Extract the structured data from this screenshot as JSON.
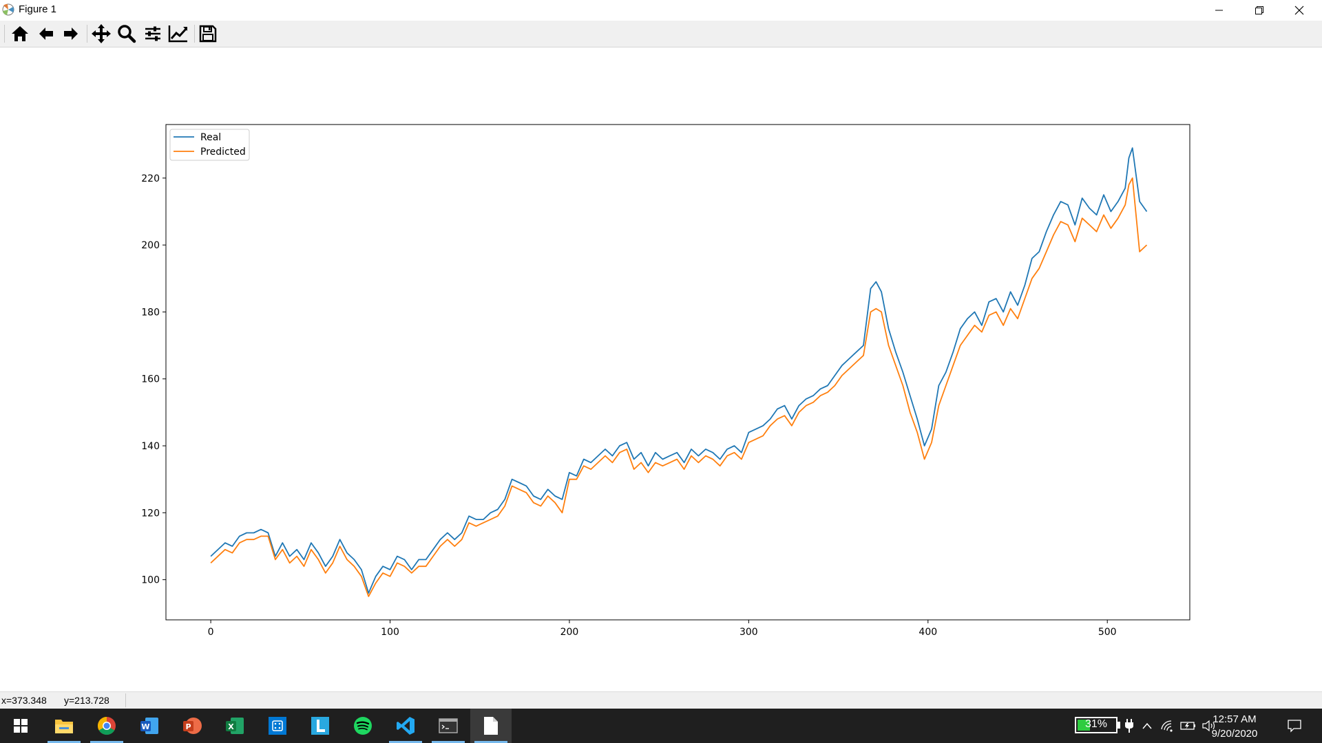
{
  "window": {
    "title": "Figure 1",
    "minimize_icon": "minimize-icon",
    "restore_icon": "restore-icon",
    "close_icon": "close-icon"
  },
  "toolbar": {
    "items": [
      "home-icon",
      "back-arrow-icon",
      "forward-arrow-icon",
      "pan-icon",
      "zoom-icon",
      "subplots-icon",
      "edit-axis-icon",
      "save-icon"
    ]
  },
  "chart_data": {
    "type": "line",
    "title": "",
    "xlabel": "",
    "ylabel": "",
    "xlim": [
      -25,
      546
    ],
    "ylim": [
      88,
      236
    ],
    "xticks": [
      0,
      100,
      200,
      300,
      400,
      500
    ],
    "yticks": [
      100,
      120,
      140,
      160,
      180,
      200,
      220
    ],
    "legend_position": "upper-left",
    "grid": false,
    "series": [
      {
        "name": "Real",
        "color": "#1f77b4",
        "x": [
          0,
          8,
          12,
          16,
          20,
          24,
          28,
          32,
          36,
          40,
          44,
          48,
          52,
          56,
          60,
          64,
          68,
          72,
          76,
          80,
          84,
          88,
          92,
          96,
          100,
          104,
          108,
          112,
          116,
          120,
          124,
          128,
          132,
          136,
          140,
          144,
          148,
          152,
          156,
          160,
          164,
          168,
          172,
          176,
          180,
          184,
          188,
          192,
          196,
          200,
          204,
          208,
          212,
          216,
          220,
          224,
          228,
          232,
          236,
          240,
          244,
          248,
          252,
          256,
          260,
          264,
          268,
          272,
          276,
          280,
          284,
          288,
          292,
          296,
          300,
          304,
          308,
          312,
          316,
          320,
          324,
          328,
          332,
          336,
          340,
          344,
          348,
          352,
          356,
          360,
          364,
          368,
          371,
          374,
          378,
          382,
          386,
          390,
          394,
          398,
          402,
          406,
          410,
          414,
          418,
          422,
          426,
          430,
          434,
          438,
          442,
          446,
          450,
          454,
          458,
          462,
          466,
          470,
          474,
          478,
          482,
          486,
          490,
          494,
          498,
          502,
          506,
          510,
          512,
          514,
          518,
          522
        ],
        "y": [
          107,
          111,
          110,
          113,
          114,
          114,
          115,
          114,
          107,
          111,
          107,
          109,
          106,
          111,
          108,
          104,
          107,
          112,
          108,
          106,
          103,
          96,
          101,
          104,
          103,
          107,
          106,
          103,
          106,
          106,
          109,
          112,
          114,
          112,
          114,
          119,
          118,
          118,
          120,
          121,
          124,
          130,
          129,
          128,
          125,
          124,
          127,
          125,
          124,
          132,
          131,
          136,
          135,
          137,
          139,
          137,
          140,
          141,
          136,
          138,
          134,
          138,
          136,
          137,
          138,
          135,
          139,
          137,
          139,
          138,
          136,
          139,
          140,
          138,
          144,
          145,
          146,
          148,
          151,
          152,
          148,
          152,
          154,
          155,
          157,
          158,
          161,
          164,
          166,
          168,
          170,
          187,
          189,
          186,
          175,
          168,
          162,
          155,
          148,
          140,
          145,
          158,
          162,
          168,
          175,
          178,
          180,
          176,
          183,
          184,
          180,
          186,
          182,
          188,
          196,
          198,
          204,
          209,
          213,
          212,
          206,
          214,
          211,
          209,
          215,
          210,
          213,
          217,
          226,
          229,
          213,
          210
        ]
      },
      {
        "name": "Predicted",
        "color": "#ff7f0e",
        "x": [
          0,
          8,
          12,
          16,
          20,
          24,
          28,
          32,
          36,
          40,
          44,
          48,
          52,
          56,
          60,
          64,
          68,
          72,
          76,
          80,
          84,
          88,
          92,
          96,
          100,
          104,
          108,
          112,
          116,
          120,
          124,
          128,
          132,
          136,
          140,
          144,
          148,
          152,
          156,
          160,
          164,
          168,
          172,
          176,
          180,
          184,
          188,
          192,
          196,
          200,
          204,
          208,
          212,
          216,
          220,
          224,
          228,
          232,
          236,
          240,
          244,
          248,
          252,
          256,
          260,
          264,
          268,
          272,
          276,
          280,
          284,
          288,
          292,
          296,
          300,
          304,
          308,
          312,
          316,
          320,
          324,
          328,
          332,
          336,
          340,
          344,
          348,
          352,
          356,
          360,
          364,
          368,
          371,
          374,
          378,
          382,
          386,
          390,
          394,
          398,
          402,
          406,
          410,
          414,
          418,
          422,
          426,
          430,
          434,
          438,
          442,
          446,
          450,
          454,
          458,
          462,
          466,
          470,
          474,
          478,
          482,
          486,
          490,
          494,
          498,
          502,
          506,
          510,
          512,
          514,
          518,
          522
        ],
        "y": [
          105,
          109,
          108,
          111,
          112,
          112,
          113,
          113,
          106,
          109,
          105,
          107,
          104,
          109,
          106,
          102,
          105,
          110,
          106,
          104,
          101,
          95,
          99,
          102,
          101,
          105,
          104,
          102,
          104,
          104,
          107,
          110,
          112,
          110,
          112,
          117,
          116,
          117,
          118,
          119,
          122,
          128,
          127,
          126,
          123,
          122,
          125,
          123,
          120,
          130,
          130,
          134,
          133,
          135,
          137,
          135,
          138,
          139,
          133,
          135,
          132,
          135,
          134,
          135,
          136,
          133,
          137,
          135,
          137,
          136,
          134,
          137,
          138,
          136,
          141,
          142,
          143,
          146,
          148,
          149,
          146,
          150,
          152,
          153,
          155,
          156,
          158,
          161,
          163,
          165,
          167,
          180,
          181,
          180,
          170,
          164,
          158,
          150,
          144,
          136,
          141,
          152,
          158,
          164,
          170,
          173,
          176,
          174,
          179,
          180,
          176,
          181,
          178,
          184,
          190,
          193,
          198,
          203,
          207,
          206,
          201,
          208,
          206,
          204,
          209,
          205,
          208,
          212,
          218,
          220,
          198,
          200
        ]
      }
    ]
  },
  "status": {
    "x_readout": "x=373.348",
    "y_readout": "y=213.728"
  },
  "taskbar": {
    "apps": [
      "windows-start-icon",
      "file-explorer-icon",
      "chrome-icon",
      "word-icon",
      "powerpoint-icon",
      "excel-icon",
      "calculator-app-icon",
      "launcher-l-icon",
      "spotify-icon",
      "vscode-icon",
      "terminal-icon",
      "document-icon"
    ],
    "active_app": "document-icon",
    "battery_percent": "31%",
    "battery_level": 0.31,
    "time": "12:57 AM",
    "date": "9/20/2020"
  }
}
